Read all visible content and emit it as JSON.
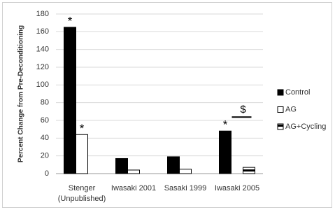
{
  "chart_data": {
    "type": "bar",
    "y_label": "Percent Change from Pre-Deconditioning",
    "categories": [
      "Stenger\n(Unpublished)",
      "Iwasaki 2001",
      "Sasaki 1999",
      "Iwasaki 2005"
    ],
    "series": [
      {
        "name": "Control",
        "color": "#000000",
        "values": [
          165,
          17,
          19,
          48
        ]
      },
      {
        "name": "AG",
        "color": "#ffffff",
        "values": [
          44,
          4,
          5,
          null
        ]
      },
      {
        "name": "AG+Cycling",
        "color": "#ffffff",
        "hatch": "horizontal",
        "values": [
          null,
          null,
          null,
          7
        ]
      }
    ],
    "annotations": [
      "*",
      "*",
      "*",
      "$"
    ],
    "ylim": [
      0,
      180
    ],
    "yticks": [
      0,
      20,
      40,
      60,
      80,
      100,
      120,
      140,
      160,
      180
    ],
    "grid": true,
    "legend": "right"
  }
}
